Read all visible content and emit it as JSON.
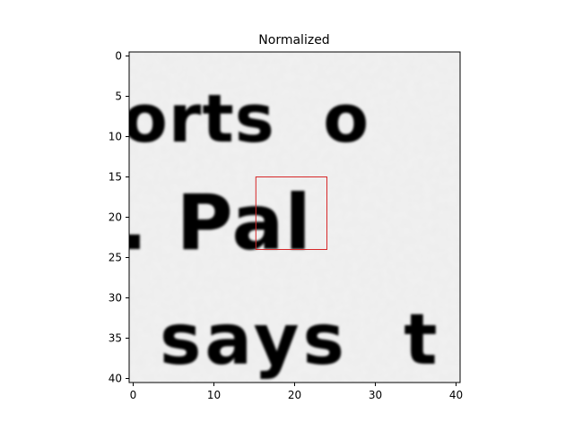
{
  "chart_data": {
    "type": "heatmap",
    "title": "Normalized",
    "colormap": "gray",
    "xlim": [
      -0.5,
      40.5
    ],
    "ylim": [
      40.5,
      -0.5
    ],
    "x_ticks": [
      0,
      10,
      20,
      30,
      40
    ],
    "y_ticks": [
      0,
      5,
      10,
      15,
      20,
      25,
      30,
      35,
      40
    ],
    "x_tick_labels": [
      "0",
      "10",
      "20",
      "30",
      "40"
    ],
    "y_tick_labels": [
      "0",
      "5",
      "10",
      "15",
      "20",
      "25",
      "30",
      "35",
      "40"
    ],
    "image_text_lines": [
      {
        "text": "orts  o",
        "row_range": [
          3,
          11
        ]
      },
      {
        "text": ". Pal",
        "row_range": [
          15,
          25
        ]
      },
      {
        "text": "says  t",
        "row_range": [
          30,
          40
        ]
      }
    ],
    "highlight_box": {
      "x0": 15.2,
      "x1": 24,
      "y0": 15,
      "y1": 24,
      "color": "#d62728"
    }
  }
}
